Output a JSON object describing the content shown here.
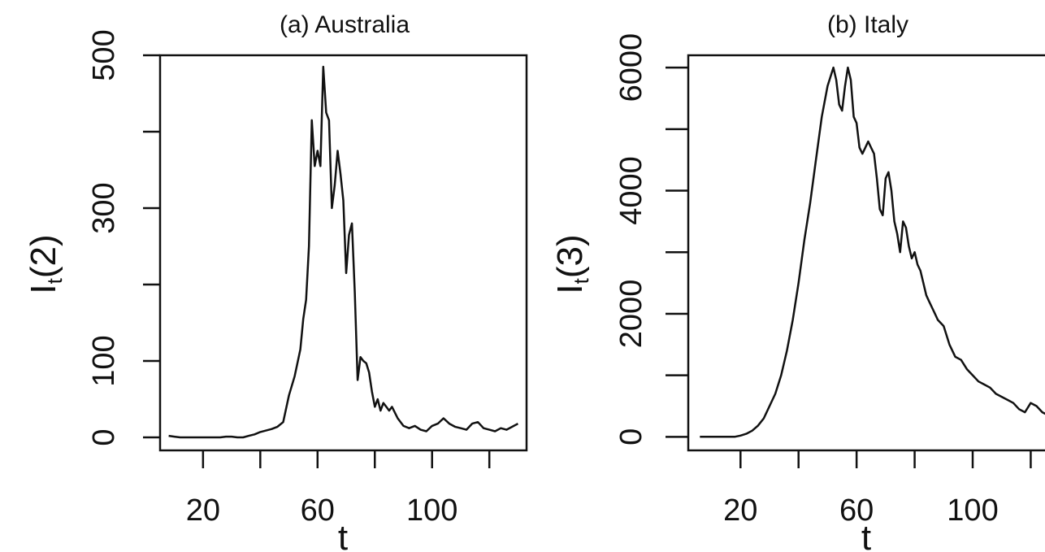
{
  "chart_data": [
    {
      "type": "line",
      "title": "(a) Australia",
      "xlabel": "t",
      "ylabel_main": "I",
      "ylabel_sub": "t",
      "ylabel_arg": "(2)",
      "xlim": [
        5,
        133
      ],
      "ylim": [
        -17,
        500
      ],
      "xticks": [
        20,
        40,
        60,
        80,
        100,
        120
      ],
      "xtick_labels": [
        "20",
        "",
        "60",
        "",
        "100",
        ""
      ],
      "yticks": [
        0,
        100,
        200,
        300,
        400,
        500
      ],
      "ytick_labels": [
        "0",
        "100",
        "",
        "300",
        "",
        "500"
      ],
      "series": [
        {
          "x": [
            8,
            10,
            12,
            14,
            16,
            18,
            20,
            22,
            24,
            26,
            28,
            30,
            32,
            34,
            36,
            38,
            40,
            42,
            44,
            46,
            48,
            50,
            52,
            54,
            55,
            56,
            57,
            58,
            59,
            60,
            61,
            62,
            63,
            64,
            65,
            66,
            67,
            68,
            69,
            70,
            71,
            72,
            73,
            74,
            75,
            76,
            77,
            78,
            79,
            80,
            81,
            82,
            83,
            84,
            85,
            86,
            88,
            90,
            92,
            94,
            96,
            98,
            100,
            102,
            104,
            106,
            108,
            110,
            112,
            114,
            116,
            118,
            120,
            122,
            124,
            126,
            128,
            130
          ],
          "y": [
            2,
            1,
            0,
            0,
            0,
            0,
            0,
            0,
            0,
            0,
            1,
            1,
            0,
            0,
            2,
            4,
            7,
            9,
            11,
            14,
            20,
            55,
            80,
            115,
            155,
            180,
            250,
            415,
            355,
            375,
            355,
            485,
            425,
            415,
            300,
            330,
            375,
            345,
            310,
            215,
            265,
            280,
            190,
            75,
            105,
            100,
            97,
            85,
            60,
            40,
            50,
            35,
            45,
            40,
            35,
            40,
            25,
            15,
            12,
            15,
            10,
            8,
            15,
            18,
            25,
            18,
            14,
            12,
            10,
            18,
            20,
            12,
            10,
            8,
            12,
            10,
            14,
            18
          ]
        }
      ]
    },
    {
      "type": "line",
      "title": "(b) Italy",
      "xlabel": "t",
      "ylabel_main": "I",
      "ylabel_sub": "t",
      "ylabel_arg": "(3)",
      "xlim": [
        2,
        128
      ],
      "ylim": [
        -220,
        6200
      ],
      "xticks": [
        20,
        40,
        60,
        80,
        100,
        120
      ],
      "xtick_labels": [
        "20",
        "",
        "60",
        "",
        "100",
        ""
      ],
      "yticks": [
        0,
        1000,
        2000,
        3000,
        4000,
        5000,
        6000
      ],
      "ytick_labels": [
        "0",
        "",
        "2000",
        "",
        "4000",
        "",
        "6000"
      ],
      "series": [
        {
          "x": [
            6,
            10,
            14,
            18,
            20,
            22,
            24,
            26,
            28,
            30,
            32,
            34,
            36,
            38,
            40,
            42,
            44,
            46,
            48,
            50,
            52,
            53,
            54,
            55,
            56,
            57,
            58,
            59,
            60,
            61,
            62,
            63,
            64,
            65,
            66,
            67,
            68,
            69,
            70,
            71,
            72,
            73,
            74,
            75,
            76,
            77,
            78,
            79,
            80,
            81,
            82,
            83,
            84,
            85,
            86,
            87,
            88,
            90,
            92,
            94,
            96,
            98,
            100,
            102,
            104,
            106,
            108,
            110,
            112,
            114,
            116,
            118,
            120,
            122,
            124,
            126
          ],
          "y": [
            0,
            0,
            0,
            0,
            20,
            50,
            100,
            180,
            300,
            500,
            700,
            1000,
            1400,
            1900,
            2500,
            3200,
            3800,
            4500,
            5200,
            5700,
            6000,
            5800,
            5400,
            5300,
            5700,
            6000,
            5800,
            5200,
            5100,
            4700,
            4600,
            4700,
            4800,
            4700,
            4600,
            4200,
            3700,
            3600,
            4200,
            4300,
            4000,
            3500,
            3300,
            3000,
            3500,
            3400,
            3100,
            2900,
            3000,
            2800,
            2700,
            2500,
            2300,
            2200,
            2100,
            2000,
            1900,
            1800,
            1500,
            1300,
            1250,
            1100,
            1000,
            900,
            850,
            800,
            700,
            650,
            600,
            550,
            450,
            400,
            550,
            500,
            400,
            350
          ]
        }
      ]
    }
  ]
}
